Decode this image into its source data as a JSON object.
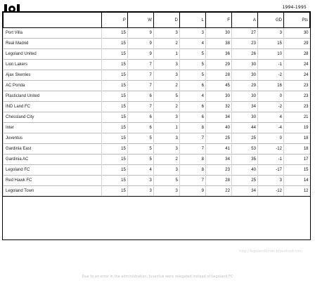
{
  "header": {
    "season": "1994-1995"
  },
  "table": {
    "columns": [
      "",
      "P",
      "W",
      "D",
      "L",
      "F",
      "A",
      "GD",
      "Pts"
    ],
    "rows": [
      [
        "Port Villa",
        "15",
        "9",
        "3",
        "3",
        "30",
        "27",
        "3",
        "30"
      ],
      [
        "Real Madrid",
        "15",
        "9",
        "2",
        "4",
        "38",
        "23",
        "15",
        "29"
      ],
      [
        "Legoland United",
        "15",
        "9",
        "1",
        "5",
        "36",
        "26",
        "10",
        "28"
      ],
      [
        "Lion Lakers",
        "15",
        "7",
        "3",
        "5",
        "29",
        "30",
        "-1",
        "24"
      ],
      [
        "Ajax Skerries",
        "15",
        "7",
        "3",
        "5",
        "28",
        "30",
        "-2",
        "24"
      ],
      [
        "AC Ponda",
        "15",
        "7",
        "2",
        "6",
        "45",
        "29",
        "16",
        "23"
      ],
      [
        "Plasticland United",
        "15",
        "6",
        "5",
        "4",
        "30",
        "30",
        "0",
        "23"
      ],
      [
        "IND Land FC",
        "15",
        "7",
        "2",
        "6",
        "32",
        "34",
        "-2",
        "23"
      ],
      [
        "Chessland City",
        "15",
        "6",
        "3",
        "6",
        "34",
        "30",
        "4",
        "21"
      ],
      [
        "Inter",
        "15",
        "6",
        "1",
        "8",
        "40",
        "44",
        "-4",
        "19"
      ],
      [
        "Juventus",
        "15",
        "5",
        "3",
        "7",
        "25",
        "25",
        "0",
        "18"
      ],
      [
        "Gardinia East",
        "15",
        "5",
        "3",
        "7",
        "41",
        "53",
        "-12",
        "18"
      ],
      [
        "Gardinia AC",
        "15",
        "5",
        "2",
        "8",
        "34",
        "35",
        "-1",
        "17"
      ],
      [
        "Legoland FC",
        "15",
        "4",
        "3",
        "8",
        "23",
        "40",
        "-17",
        "15"
      ],
      [
        "Red Hawk FC",
        "15",
        "3",
        "5",
        "7",
        "28",
        "25",
        "3",
        "14"
      ],
      [
        "Legoland Town",
        "15",
        "3",
        "3",
        "9",
        "22",
        "34",
        "-12",
        "12"
      ]
    ]
  },
  "footer": {
    "url": "http://legolandtimes.bravehost.com",
    "note": "Due to an error in the administration, Juventus were relegated instead of Legoland FC"
  }
}
